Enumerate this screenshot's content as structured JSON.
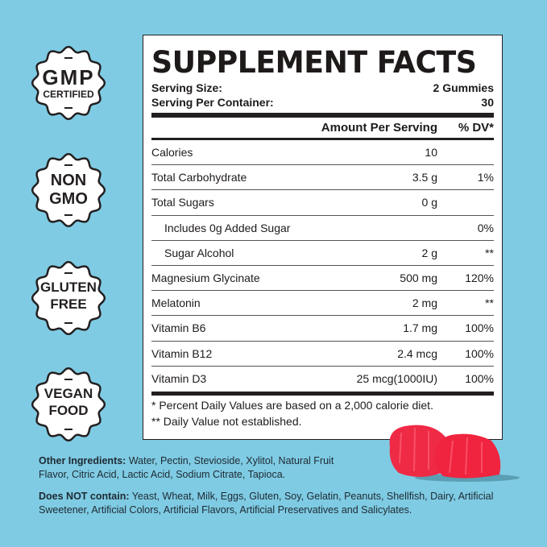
{
  "badges": [
    {
      "line1": "GMP",
      "line2": "CERTIFIED",
      "icon": "gmp-certified-badge"
    },
    {
      "line1": "NON",
      "line2": "GMO",
      "icon": "non-gmo-badge"
    },
    {
      "line1": "GLUTEN",
      "line2": "FREE",
      "icon": "gluten-free-badge"
    },
    {
      "line1": "VEGAN",
      "line2": "FOOD",
      "icon": "vegan-food-badge"
    }
  ],
  "facts": {
    "title": "SUPPLEMENT FACTS",
    "serving_size_label": "Serving Size:",
    "serving_size": "2 Gummies",
    "servings_label": "Serving Per Container:",
    "servings": "30",
    "col_amount": "Amount Per Serving",
    "col_dv": "% DV*",
    "rows": [
      {
        "name": "Calories",
        "amount": "10",
        "dv": ""
      },
      {
        "name": "Total Carbohydrate",
        "amount": "3.5 g",
        "dv": "1%"
      },
      {
        "name": "Total Sugars",
        "amount": "0 g",
        "dv": ""
      },
      {
        "name": "Includes 0g Added Sugar",
        "amount": "",
        "dv": "0%"
      },
      {
        "name": "Sugar Alcohol",
        "amount": "2 g",
        "dv": "**"
      },
      {
        "name": "Magnesium Glycinate",
        "amount": "500 mg",
        "dv": "120%"
      },
      {
        "name": "Melatonin",
        "amount": "2 mg",
        "dv": "**"
      },
      {
        "name": "Vitamin B6",
        "amount": "1.7 mg",
        "dv": "100%"
      },
      {
        "name": "Vitamin B12",
        "amount": "2.4 mcg",
        "dv": "100%"
      },
      {
        "name": "Vitamin D3",
        "amount": "25 mcg(1000IU)",
        "dv": "100%"
      }
    ],
    "footnote1": "* Percent Daily Values are based on a 2,000 calorie diet.",
    "footnote2": "** Daily Value not established."
  },
  "other_ingredients": {
    "label": "Other Ingredients:",
    "text": " Water, Pectin, Stevioside, Xylitol, Natural Fruit Flavor, Citric Acid, Lactic Acid, Sodium Citrate, Tapioca."
  },
  "does_not_contain": {
    "label": "Does NOT contain:",
    "text": " Yeast, Wheat, Milk, Eggs, Gluten, Soy, Gelatin, Peanuts, Shellfish, Dairy, Artificial Sweetener, Artificial Colors, Artificial Flavors, Artificial Preservatives and Salicylates."
  },
  "colors": {
    "background": "#7fcbe3",
    "gummy": "#ef2a45",
    "ink": "#231f20"
  }
}
